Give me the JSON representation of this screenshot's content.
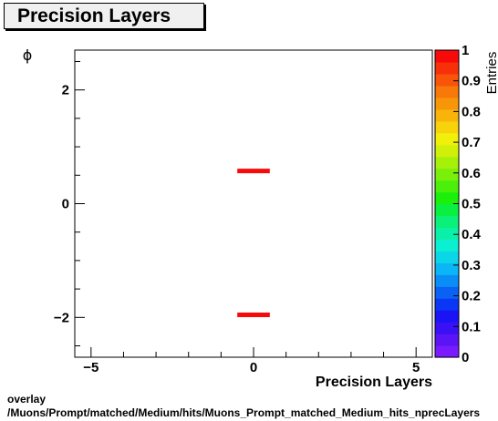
{
  "header": {
    "title": "Precision Layers"
  },
  "footer": {
    "line1": "overlay",
    "line2": "/Muons/Prompt/matched/Medium/hits/Muons_Prompt_matched_Medium_hits_nprecLayers"
  },
  "chart_data": {
    "type": "heatmap",
    "title": "Precision Layers",
    "xlabel": "Precision Layers",
    "ylabel": "ϕ",
    "zlabel": "Entries",
    "xlim": [
      -5.5,
      5.5
    ],
    "ylim": [
      -2.7,
      2.7
    ],
    "zlim": [
      0,
      1
    ],
    "x_ticks": [
      -5,
      0,
      5
    ],
    "y_ticks": [
      -2,
      0,
      2
    ],
    "z_ticks": [
      0,
      0.1,
      0.2,
      0.3,
      0.4,
      0.5,
      0.6,
      0.7,
      0.8,
      0.9,
      1
    ],
    "cells": [
      {
        "x": [
          -0.5,
          0.5
        ],
        "y": 0.58,
        "value": 1
      },
      {
        "x": [
          -0.5,
          0.5
        ],
        "y": -1.95,
        "value": 1
      }
    ],
    "palette": [
      "#7a1bff",
      "#5a14f5",
      "#3a10f5",
      "#1a14f5",
      "#0a36f5",
      "#0a62f5",
      "#0a8ef5",
      "#0ab6f5",
      "#0ad6e8",
      "#0af0d0",
      "#0af0a8",
      "#0af078",
      "#0af040",
      "#1af00a",
      "#4af00a",
      "#7af00a",
      "#a6f00a",
      "#d0f00a",
      "#f0f00a",
      "#f8d20a",
      "#f8b40a",
      "#f8960a",
      "#f8780a",
      "#f8540a",
      "#f8300a",
      "#f80a0a"
    ],
    "cell_color": "#f80a0a",
    "grid": false
  }
}
